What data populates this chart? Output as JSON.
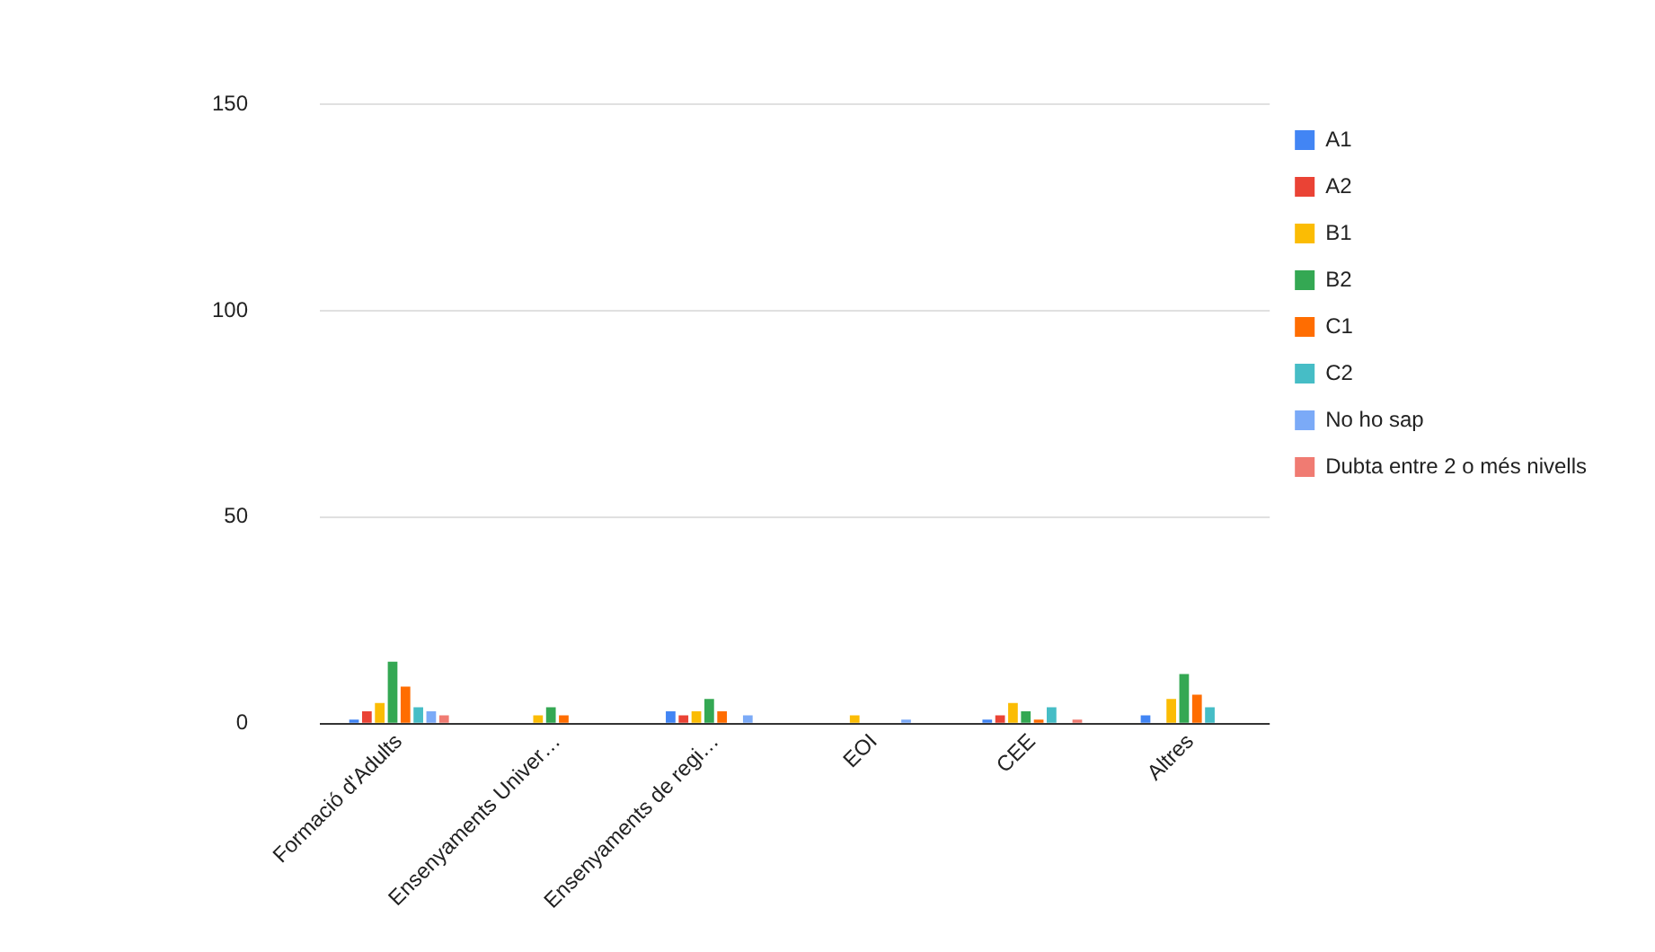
{
  "chart_data": {
    "type": "bar",
    "categories": [
      "Formació d'Adults",
      "Ensenyaments Univer…",
      "Ensenyaments de regi…",
      "EOI",
      "CEE",
      "Altres"
    ],
    "series": [
      {
        "name": "A1",
        "color": "#4285f4",
        "values": [
          1,
          0,
          3,
          0,
          1,
          2
        ]
      },
      {
        "name": "A2",
        "color": "#ea4335",
        "values": [
          3,
          0,
          2,
          0,
          2,
          0
        ]
      },
      {
        "name": "B1",
        "color": "#fbbc04",
        "values": [
          5,
          2,
          3,
          2,
          5,
          6
        ]
      },
      {
        "name": "B2",
        "color": "#34a853",
        "values": [
          15,
          4,
          6,
          0,
          3,
          12
        ]
      },
      {
        "name": "C1",
        "color": "#ff6d01",
        "values": [
          9,
          2,
          3,
          0,
          1,
          7
        ]
      },
      {
        "name": "C2",
        "color": "#46bdc6",
        "values": [
          4,
          0,
          0,
          0,
          4,
          4
        ]
      },
      {
        "name": "No ho sap",
        "color": "#7baaf7",
        "values": [
          3,
          0,
          2,
          1,
          0,
          0
        ]
      },
      {
        "name": "Dubta entre 2 o més nivells",
        "color": "#f07b72",
        "values": [
          2,
          0,
          0,
          0,
          1,
          0
        ]
      }
    ],
    "ylim": [
      0,
      150
    ],
    "yticks": [
      0,
      50,
      100,
      150
    ],
    "grid": "y",
    "legend": "right"
  }
}
